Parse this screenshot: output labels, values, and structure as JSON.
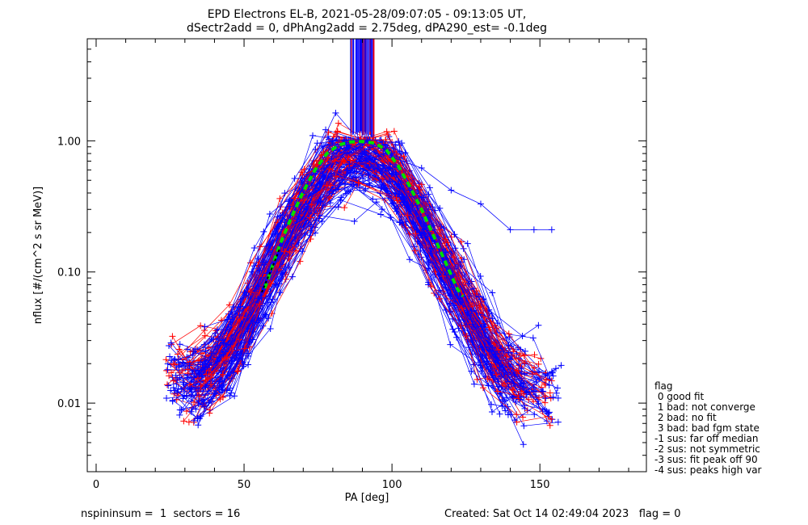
{
  "chart_data": {
    "type": "line",
    "title": "EPD Electrons EL-B, 2021-05-28/09:07:05 - 09:13:05 UT,",
    "subtitle": "dSectr2add = 0, dPhAng2add = 2.75deg, dPA290_est=  -0.1deg",
    "xlabel": "PA [deg]",
    "ylabel": "nflux [#/(cm^2 s sr MeV)]",
    "xlim": [
      -3,
      186
    ],
    "ylim": [
      0.003,
      6.0
    ],
    "yscale": "log",
    "x_ticks": [
      0,
      50,
      100,
      150
    ],
    "x_tick_labels": [
      "0",
      "50",
      "100",
      "150"
    ],
    "y_ticks": [
      0.01,
      0.1,
      1.0
    ],
    "y_tick_labels": [
      "0.01",
      "0.10",
      "1.00"
    ],
    "grid": false,
    "legend_position": "right",
    "series_colors": {
      "red": "#ff0000",
      "blue": "#0000ff",
      "fit": "#00dd00",
      "fit_alt": "#000000"
    },
    "fit_curve": {
      "x": [
        57,
        62,
        66,
        70,
        74,
        78,
        82,
        86,
        90,
        94,
        98,
        102,
        106,
        110,
        114,
        118,
        122,
        124
      ],
      "y": [
        0.075,
        0.16,
        0.26,
        0.41,
        0.6,
        0.8,
        0.93,
        0.98,
        0.99,
        0.96,
        0.86,
        0.65,
        0.45,
        0.3,
        0.19,
        0.12,
        0.075,
        0.065
      ]
    },
    "fit_curve_alt": {
      "x": [
        56,
        58,
        60,
        62
      ],
      "y": [
        0.07,
        0.09,
        0.115,
        0.15
      ]
    },
    "profile": {
      "x": [
        25,
        30,
        35,
        40,
        45,
        50,
        55,
        60,
        65,
        70,
        75,
        80,
        85,
        90,
        95,
        100,
        105,
        110,
        115,
        120,
        125,
        130,
        135,
        140,
        145,
        150
      ],
      "y": [
        0.018,
        0.015,
        0.016,
        0.019,
        0.025,
        0.04,
        0.07,
        0.13,
        0.2,
        0.32,
        0.5,
        0.72,
        0.8,
        0.82,
        0.8,
        0.6,
        0.4,
        0.25,
        0.15,
        0.09,
        0.055,
        0.035,
        0.022,
        0.016,
        0.014,
        0.013
      ]
    },
    "outlier_series": {
      "x": [
        100,
        110,
        120,
        130,
        140,
        148,
        154
      ],
      "y": [
        0.75,
        0.62,
        0.42,
        0.33,
        0.21,
        0.21,
        0.21
      ]
    }
  },
  "legend": {
    "heading": "flag",
    "items": [
      " 0 good fit",
      " 1 bad: not converge",
      " 2 bad: no fit",
      " 3 bad: bad fgm state",
      "-1 sus: far off median",
      "-2 sus: not symmetric",
      "-3 sus: fit peak off 90",
      "-4 sus: peaks high var"
    ]
  },
  "footer": {
    "left": "nspininsum =  1  sectors = 16",
    "right": "Created: Sat Oct 14 02:49:04 2023   flag = 0"
  }
}
